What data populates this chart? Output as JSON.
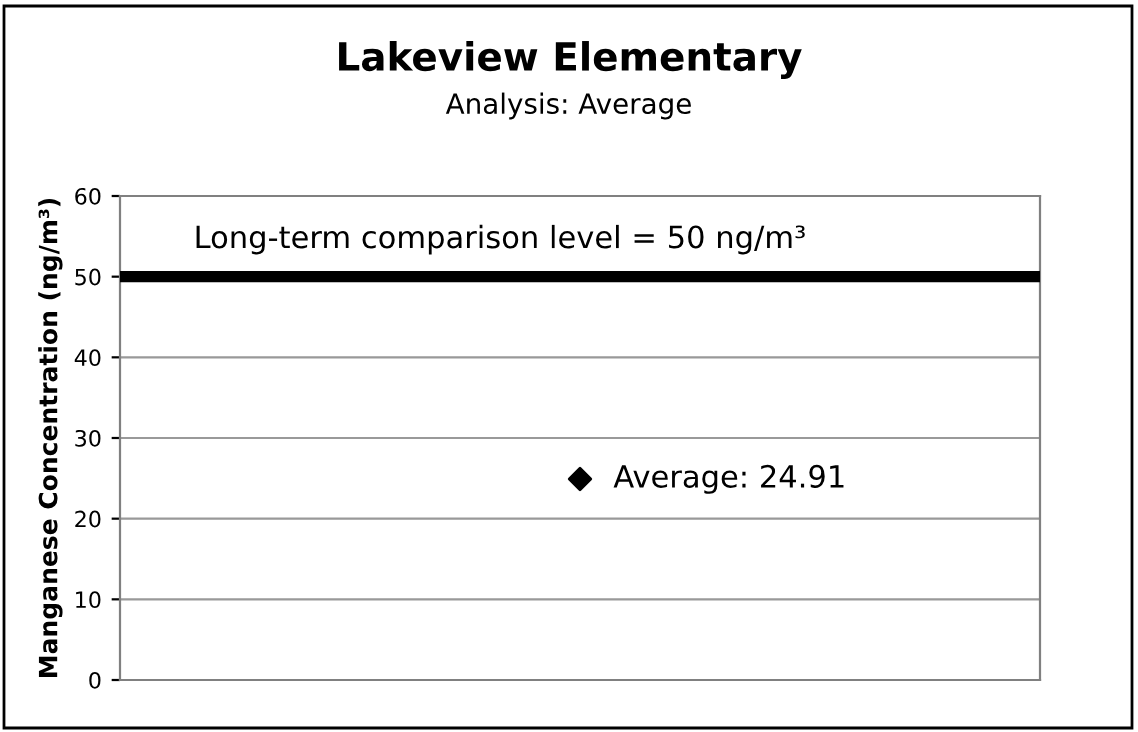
{
  "chart_data": {
    "type": "scatter",
    "title": "Lakeview Elementary",
    "subtitle": "Analysis: Average",
    "ylabel": "Manganese Concentration (ng/m³)",
    "categories": [
      null
    ],
    "series": [
      {
        "color": "#000000",
        "values": [
          24.91
        ],
        "value_labels": [
          "Average: 24.91"
        ]
      }
    ],
    "marker": "diamond",
    "ylim": [
      0,
      60
    ],
    "yticks": [
      0,
      10,
      20,
      30,
      40,
      50,
      60
    ],
    "grid": "y",
    "legend": false,
    "ref_lines": [
      {
        "axis": "y",
        "value": 50,
        "label": "Long-term comparison level = 50 ng/m³",
        "color": "#000000"
      }
    ]
  }
}
